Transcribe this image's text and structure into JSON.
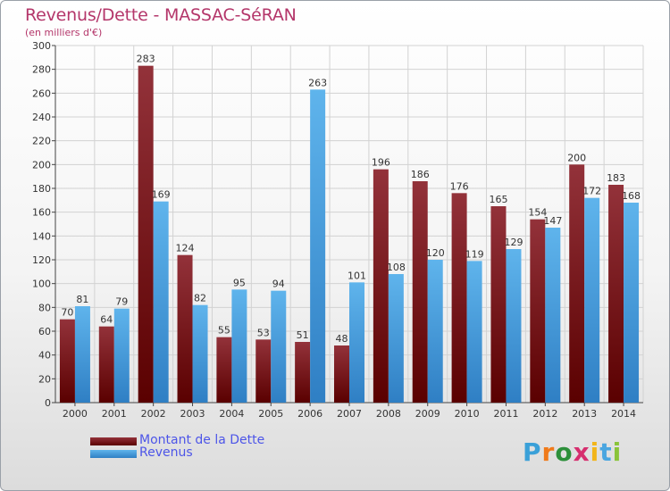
{
  "title": "Revenus/Dette - MASSAC-SéRAN",
  "subtitle": "(en milliers d'€)",
  "colors": {
    "title": "#b4366a",
    "legend_text": "#4d55e8",
    "dette_light": "#93323a",
    "dette_dark": "#5a0000",
    "revenus_light": "#5fb4ec",
    "revenus_dark": "#2f7fc4"
  },
  "legend": {
    "dette_label": "Montant de la Dette",
    "revenus_label": "Revenus"
  },
  "logo": {
    "letters": [
      "P",
      "r",
      "o",
      "x",
      "i",
      "t",
      "i"
    ],
    "colors": [
      "#3aa0d8",
      "#f07a1a",
      "#2c8f3a",
      "#d62e6e",
      "#f2b51a",
      "#4aa6e0",
      "#8ac43a"
    ]
  },
  "chart_data": {
    "type": "bar",
    "categories": [
      "2000",
      "2001",
      "2002",
      "2003",
      "2004",
      "2005",
      "2006",
      "2007",
      "2008",
      "2009",
      "2010",
      "2011",
      "2012",
      "2013",
      "2014"
    ],
    "series": [
      {
        "name": "Montant de la Dette",
        "values": [
          70,
          64,
          283,
          124,
          55,
          53,
          51,
          48,
          196,
          186,
          176,
          165,
          154,
          200,
          183
        ]
      },
      {
        "name": "Revenus",
        "values": [
          81,
          79,
          169,
          82,
          95,
          94,
          263,
          101,
          108,
          120,
          119,
          129,
          147,
          172,
          168
        ]
      }
    ],
    "ylim": [
      0,
      300
    ],
    "yticks": [
      0,
      20,
      40,
      60,
      80,
      100,
      120,
      140,
      160,
      180,
      200,
      220,
      240,
      260,
      280,
      300
    ],
    "xlabel": "",
    "ylabel": "",
    "grid": true,
    "legend_position": "bottom-left"
  }
}
